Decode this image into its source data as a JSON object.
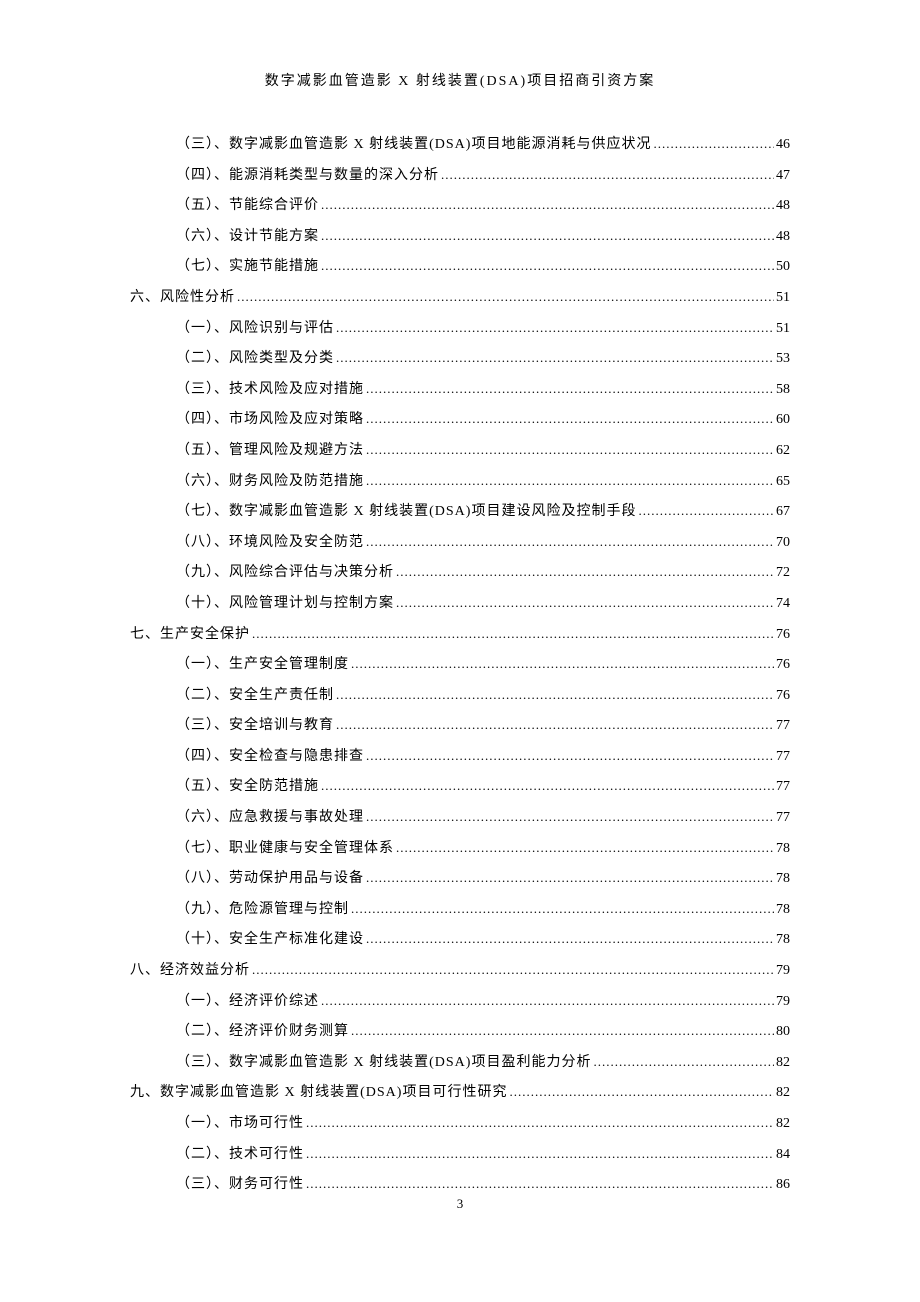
{
  "document": {
    "header_title": "数字减影血管造影 X 射线装置(DSA)项目招商引资方案",
    "page_number": "3"
  },
  "toc": {
    "entries": [
      {
        "level": 2,
        "text": "（三）、数字减影血管造影 X 射线装置(DSA)项目地能源消耗与供应状况 ",
        "page": "46"
      },
      {
        "level": 2,
        "text": "（四）、能源消耗类型与数量的深入分析",
        "page": "47"
      },
      {
        "level": 2,
        "text": "（五）、节能综合评价",
        "page": "48"
      },
      {
        "level": 2,
        "text": "（六）、设计节能方案",
        "page": "48"
      },
      {
        "level": 2,
        "text": "（七）、实施节能措施",
        "page": "50"
      },
      {
        "level": 1,
        "text": "六、风险性分析 ",
        "page": "51"
      },
      {
        "level": 2,
        "text": "（一）、风险识别与评估",
        "page": "51"
      },
      {
        "level": 2,
        "text": "（二）、风险类型及分类",
        "page": "53"
      },
      {
        "level": 2,
        "text": "（三）、技术风险及应对措施",
        "page": "58"
      },
      {
        "level": 2,
        "text": "（四）、市场风险及应对策略",
        "page": "60"
      },
      {
        "level": 2,
        "text": "（五）、管理风险及规避方法",
        "page": "62"
      },
      {
        "level": 2,
        "text": "（六）、财务风险及防范措施",
        "page": "65"
      },
      {
        "level": 2,
        "text": "（七）、数字减影血管造影 X 射线装置(DSA)项目建设风险及控制手段 ",
        "page": "67"
      },
      {
        "level": 2,
        "text": "（八）、环境风险及安全防范",
        "page": "70"
      },
      {
        "level": 2,
        "text": "（九）、风险综合评估与决策分析",
        "page": "72"
      },
      {
        "level": 2,
        "text": "（十）、风险管理计划与控制方案",
        "page": "74"
      },
      {
        "level": 1,
        "text": "七、生产安全保护 ",
        "page": "76"
      },
      {
        "level": 2,
        "text": "（一）、生产安全管理制度",
        "page": "76"
      },
      {
        "level": 2,
        "text": "（二）、安全生产责任制",
        "page": "76"
      },
      {
        "level": 2,
        "text": "（三）、安全培训与教育",
        "page": "77"
      },
      {
        "level": 2,
        "text": "（四）、安全检查与隐患排查",
        "page": "77"
      },
      {
        "level": 2,
        "text": "（五）、安全防范措施",
        "page": "77"
      },
      {
        "level": 2,
        "text": "（六）、应急救援与事故处理",
        "page": "77"
      },
      {
        "level": 2,
        "text": "（七）、职业健康与安全管理体系",
        "page": "78"
      },
      {
        "level": 2,
        "text": "（八）、劳动保护用品与设备",
        "page": "78"
      },
      {
        "level": 2,
        "text": "（九）、危险源管理与控制",
        "page": "78"
      },
      {
        "level": 2,
        "text": "（十）、安全生产标准化建设",
        "page": "78"
      },
      {
        "level": 1,
        "text": "八、经济效益分析 ",
        "page": "79"
      },
      {
        "level": 2,
        "text": "（一）、经济评价综述",
        "page": "79"
      },
      {
        "level": 2,
        "text": "（二）、经济评价财务测算",
        "page": "80"
      },
      {
        "level": 2,
        "text": "（三）、数字减影血管造影 X 射线装置(DSA)项目盈利能力分析 ",
        "page": "82"
      },
      {
        "level": 1,
        "text": "九、数字减影血管造影 X 射线装置(DSA)项目可行性研究 ",
        "page": "82"
      },
      {
        "level": 2,
        "text": "（一）、市场可行性",
        "page": "82"
      },
      {
        "level": 2,
        "text": "（二）、技术可行性",
        "page": "84"
      },
      {
        "level": 2,
        "text": "（三）、财务可行性",
        "page": "86"
      }
    ]
  }
}
